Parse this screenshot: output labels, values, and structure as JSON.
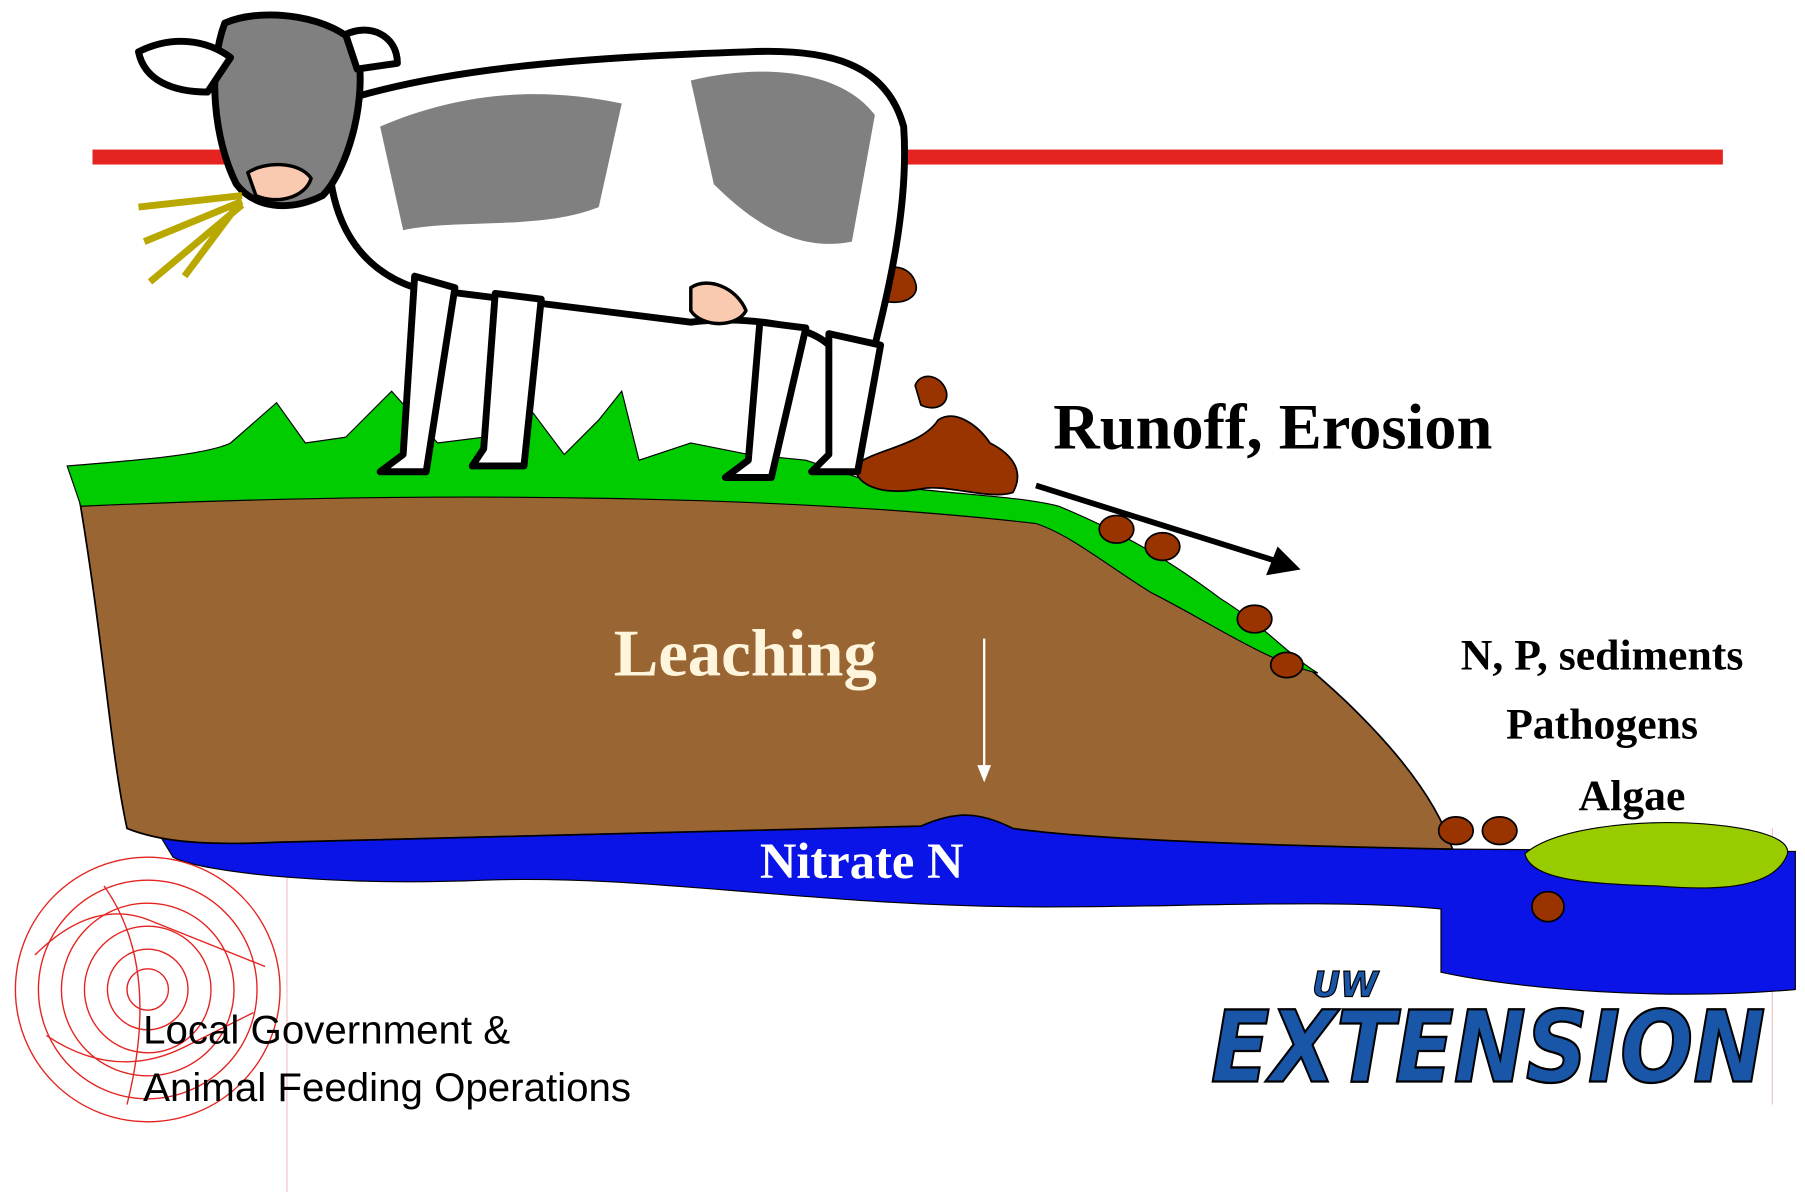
{
  "diagram": {
    "labels": {
      "runoff": "Runoff, Erosion",
      "leaching": "Leaching",
      "nitrate": "Nitrate N",
      "pollutants": [
        "N, P, sediments",
        "Pathogens",
        "Algae"
      ]
    },
    "footer": [
      "Local Government &",
      "Animal Feeding Operations"
    ],
    "logo": {
      "top": "UW",
      "main": "EXTENSION"
    }
  }
}
